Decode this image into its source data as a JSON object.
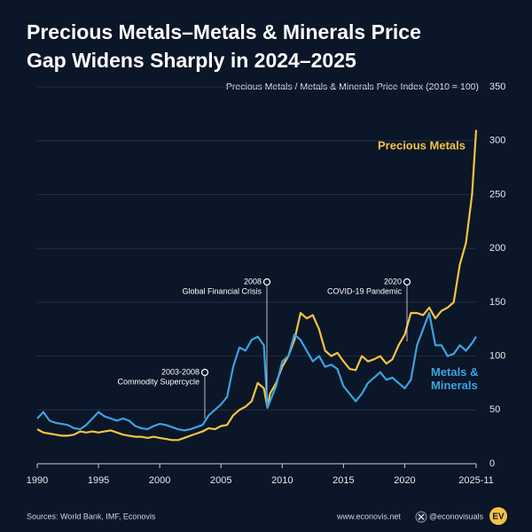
{
  "chart_data": {
    "type": "line",
    "title": "Precious Metals–Metals & Minerals Price Gap Widens Sharply in 2024–2025",
    "y_axis_label": "Precious Metals / Metals & Minerals Price Index (2010 = 100)",
    "x": [
      1990,
      1990.5,
      1991,
      1991.5,
      1992,
      1992.5,
      1993,
      1993.5,
      1994,
      1994.5,
      1995,
      1995.5,
      1996,
      1996.5,
      1997,
      1997.5,
      1998,
      1998.5,
      1999,
      1999.5,
      2000,
      2000.5,
      2001,
      2001.5,
      2002,
      2002.5,
      2003,
      2003.5,
      2004,
      2004.5,
      2005,
      2005.5,
      2006,
      2006.5,
      2007,
      2007.5,
      2008,
      2008.5,
      2008.8,
      2009,
      2009.5,
      2010,
      2010.5,
      2011,
      2011.5,
      2012,
      2012.5,
      2013,
      2013.5,
      2014,
      2014.5,
      2015,
      2015.5,
      2016,
      2016.5,
      2017,
      2017.5,
      2018,
      2018.5,
      2019,
      2019.5,
      2020,
      2020.5,
      2021,
      2021.5,
      2022,
      2022.5,
      2023,
      2023.5,
      2024,
      2024.5,
      2025,
      2025.5,
      2025.83
    ],
    "series": [
      {
        "name": "Precious Metals",
        "color": "#f5c342",
        "values": [
          32,
          29,
          28,
          27,
          26,
          26,
          27,
          30,
          29,
          30,
          29,
          30,
          31,
          29,
          27,
          26,
          25,
          25,
          24,
          25,
          24,
          23,
          22,
          22,
          24,
          26,
          28,
          30,
          33,
          32,
          35,
          36,
          45,
          50,
          53,
          58,
          75,
          70,
          52,
          65,
          75,
          90,
          100,
          115,
          140,
          135,
          138,
          125,
          105,
          100,
          103,
          95,
          88,
          87,
          100,
          95,
          97,
          100,
          93,
          97,
          110,
          120,
          140,
          140,
          138,
          145,
          135,
          142,
          145,
          150,
          185,
          205,
          250,
          310
        ]
      },
      {
        "name": "Metals & Minerals",
        "color": "#3aa3e0",
        "values": [
          42,
          48,
          40,
          38,
          37,
          36,
          33,
          32,
          36,
          42,
          48,
          44,
          42,
          40,
          42,
          40,
          35,
          33,
          32,
          35,
          37,
          36,
          34,
          32,
          31,
          32,
          34,
          36,
          45,
          50,
          55,
          62,
          90,
          108,
          105,
          115,
          118,
          110,
          52,
          58,
          72,
          95,
          100,
          120,
          115,
          105,
          95,
          100,
          90,
          92,
          88,
          72,
          65,
          58,
          65,
          75,
          80,
          85,
          78,
          80,
          75,
          70,
          78,
          110,
          125,
          140,
          110,
          110,
          100,
          102,
          110,
          105,
          112,
          118
        ]
      }
    ],
    "xlim": [
      1990,
      2025.83
    ],
    "xticks": [
      1990,
      1995,
      2000,
      2005,
      2010,
      2015,
      2020,
      {
        "value": 2025.83,
        "label": "2025-11"
      }
    ],
    "ylim": [
      0,
      350
    ],
    "yticks": [
      0,
      50,
      100,
      150,
      200,
      250,
      300,
      350
    ],
    "grid": true,
    "annotations": [
      {
        "label": "2003-2008",
        "text": "Commodity Supercycle"
      },
      {
        "label": "2008",
        "text": "Global Financial Crisis"
      },
      {
        "label": "2020",
        "text": "COVID-19 Pandemic"
      }
    ],
    "source": "Sources: World Bank, IMF, Econovis",
    "website": "www.econovis.net",
    "handle": "@econovisuals",
    "logo": "EV"
  }
}
